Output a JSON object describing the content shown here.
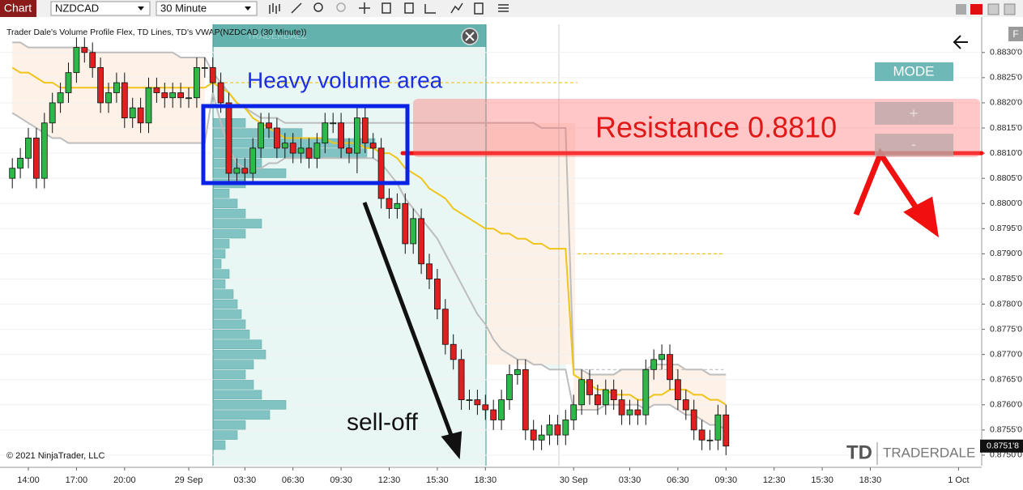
{
  "toolbar": {
    "tab": "Chart",
    "instrument": "NZDCAD",
    "interval": "30 Minute"
  },
  "chart_data": {
    "type": "candlestick",
    "title": "Trader Dale's Volume Profile Flex, TD Lines, TD's VWAP(NZDCAD (30 Minute))",
    "watermark": "TRADERDALE",
    "categories": [
      null,
      null,
      "14:00",
      null,
      null,
      null,
      null,
      null,
      "17:00",
      null,
      null,
      null,
      null,
      null,
      "20:00",
      null,
      null,
      null,
      null,
      null,
      null,
      null,
      "29 Sep",
      null,
      null,
      null,
      null,
      null,
      null,
      "03:30",
      null,
      null,
      null,
      null,
      null,
      "06:30",
      null,
      null,
      null,
      null,
      null,
      "09:30",
      null,
      null,
      null,
      null,
      null,
      "12:30",
      null,
      null,
      null,
      null,
      null,
      "15:30",
      null,
      null,
      null,
      null,
      null,
      "18:30",
      null,
      null,
      null,
      null,
      null,
      null,
      null,
      null,
      null,
      null,
      "30 Sep",
      null,
      null,
      null,
      null,
      null,
      null,
      "03:30",
      null,
      null,
      null,
      null,
      null,
      "06:30",
      null,
      null,
      null,
      null,
      null,
      "09:30",
      null,
      null,
      null,
      null,
      null,
      "12:30",
      null,
      null,
      null,
      null,
      null,
      "15:30",
      null,
      null,
      null,
      null,
      null,
      "18:30",
      null,
      null,
      null,
      null,
      null,
      null,
      null,
      null,
      null,
      null,
      "1 Oct",
      null
    ],
    "open": [
      0.8805,
      0.8807,
      0.8809,
      0.8813,
      0.8805,
      0.8816,
      0.882,
      0.8822,
      0.8826,
      0.8831,
      0.883,
      0.8827,
      0.882,
      0.8822,
      0.8824,
      0.8817,
      0.8819,
      0.8816,
      0.8823,
      0.8822,
      0.8821,
      0.8822,
      0.8821,
      0.8821,
      0.8827,
      0.8827,
      0.8824,
      0.882,
      0.8806,
      0.8807,
      0.8806,
      0.8811,
      0.8816,
      0.8815,
      0.8811,
      0.8812,
      0.881,
      0.8811,
      0.8809,
      0.8812,
      0.8816,
      0.8816,
      0.8811,
      0.881,
      0.8817,
      0.8812,
      0.8811,
      0.8801,
      0.8799,
      0.88,
      0.8792,
      0.8797,
      0.8788,
      0.8785,
      0.8779,
      0.8772,
      0.8769,
      0.8761,
      0.8761,
      0.876,
      0.8759,
      0.8757,
      0.8761,
      0.8766,
      0.8767,
      0.8755,
      0.8753,
      0.8754,
      0.8756,
      0.8754,
      0.8757,
      0.876,
      0.8765,
      0.8762,
      0.876,
      0.8763,
      0.8761,
      0.8758,
      0.8759,
      0.8758,
      0.8767,
      0.8769,
      0.877,
      0.8765,
      0.8761,
      0.8759,
      0.8755,
      0.8753,
      0.8753,
      0.8758,
      null,
      null,
      null,
      null,
      null,
      null,
      null,
      null,
      null,
      null,
      null,
      null,
      null,
      null,
      null,
      null,
      null,
      null,
      null,
      null,
      null,
      null,
      null,
      null,
      null,
      null,
      null,
      null,
      null,
      null
    ],
    "high": [
      0.8809,
      0.8811,
      0.8815,
      0.8815,
      0.8818,
      0.8822,
      0.8824,
      0.8828,
      0.8833,
      0.8833,
      0.8832,
      0.8829,
      0.8824,
      0.8826,
      0.8826,
      0.8821,
      0.8821,
      0.8825,
      0.8825,
      0.8824,
      0.8824,
      0.8824,
      0.8823,
      0.8829,
      0.8829,
      0.8829,
      0.8826,
      0.8822,
      0.8809,
      0.8809,
      0.8813,
      0.8818,
      0.8818,
      0.8817,
      0.8814,
      0.8814,
      0.8813,
      0.8813,
      0.8814,
      0.8818,
      0.8818,
      0.8818,
      0.8813,
      0.8819,
      0.8819,
      0.8814,
      0.8813,
      0.8803,
      0.8802,
      0.8802,
      0.8799,
      0.8799,
      0.879,
      0.8787,
      0.8781,
      0.8774,
      0.8771,
      0.8763,
      0.8763,
      0.8762,
      0.8761,
      0.8763,
      0.8768,
      0.8769,
      0.8769,
      0.8757,
      0.8756,
      0.8758,
      0.8758,
      0.8759,
      0.8762,
      0.8767,
      0.8767,
      0.8764,
      0.8765,
      0.8765,
      0.8763,
      0.8761,
      0.8761,
      0.8769,
      0.8771,
      0.8772,
      0.8772,
      0.8767,
      0.8763,
      0.8761,
      0.8757,
      0.8755,
      0.876,
      0.876,
      null,
      null,
      null,
      null,
      null,
      null,
      null,
      null,
      null,
      null,
      null,
      null,
      null,
      null,
      null,
      null,
      null,
      null,
      null,
      null,
      null,
      null,
      null,
      null,
      null,
      null,
      null,
      null,
      null,
      null
    ],
    "low": [
      0.8803,
      0.8805,
      0.8807,
      0.8803,
      0.8803,
      0.8814,
      0.8818,
      0.882,
      0.8824,
      0.8828,
      0.8825,
      0.8818,
      0.8818,
      0.882,
      0.8815,
      0.8815,
      0.8814,
      0.8814,
      0.882,
      0.8819,
      0.8819,
      0.8819,
      0.8819,
      0.8819,
      0.8825,
      0.8822,
      0.8818,
      0.8804,
      0.8804,
      0.8804,
      0.8804,
      0.8809,
      0.8813,
      0.8809,
      0.8809,
      0.8808,
      0.8808,
      0.8807,
      0.8807,
      0.881,
      0.8814,
      0.8809,
      0.8808,
      0.8806,
      0.881,
      0.8809,
      0.8799,
      0.8797,
      0.8797,
      0.879,
      0.879,
      0.8786,
      0.8783,
      0.8777,
      0.877,
      0.8767,
      0.8759,
      0.8759,
      0.8758,
      0.8757,
      0.8755,
      0.8755,
      0.8759,
      0.8764,
      0.8753,
      0.8751,
      0.8751,
      0.8752,
      0.8752,
      0.8752,
      0.8755,
      0.8758,
      0.876,
      0.8758,
      0.8758,
      0.8759,
      0.8756,
      0.8756,
      0.8756,
      0.8756,
      0.8765,
      0.8767,
      0.8763,
      0.8759,
      0.8757,
      0.8753,
      0.8751,
      0.8751,
      0.8751,
      0.875,
      null,
      null,
      null,
      null,
      null,
      null,
      null,
      null,
      null,
      null,
      null,
      null,
      null,
      null,
      null,
      null,
      null,
      null,
      null,
      null,
      null,
      null,
      null,
      null,
      null,
      null,
      null,
      null,
      null,
      null
    ],
    "close": [
      0.8807,
      0.8809,
      0.8813,
      0.8805,
      0.8816,
      0.882,
      0.8822,
      0.8826,
      0.8831,
      0.883,
      0.8827,
      0.882,
      0.8822,
      0.8824,
      0.8817,
      0.8819,
      0.8816,
      0.8823,
      0.8822,
      0.8821,
      0.8822,
      0.8821,
      0.8821,
      0.8827,
      0.8827,
      0.8824,
      0.882,
      0.8806,
      0.8807,
      0.8806,
      0.8811,
      0.8816,
      0.8815,
      0.8811,
      0.8812,
      0.881,
      0.8811,
      0.8809,
      0.8812,
      0.8816,
      0.8816,
      0.8811,
      0.881,
      0.8817,
      0.8812,
      0.8811,
      0.8801,
      0.8799,
      0.88,
      0.8792,
      0.8797,
      0.8788,
      0.8785,
      0.8779,
      0.8772,
      0.8769,
      0.8761,
      0.8761,
      0.876,
      0.8759,
      0.8757,
      0.8761,
      0.8766,
      0.8767,
      0.8755,
      0.8753,
      0.8754,
      0.8756,
      0.8754,
      0.8757,
      0.876,
      0.8765,
      0.8762,
      0.876,
      0.8763,
      0.8761,
      0.8758,
      0.8759,
      0.8758,
      0.8767,
      0.8769,
      0.877,
      0.8765,
      0.8761,
      0.8759,
      0.8755,
      0.8753,
      0.8753,
      0.8758,
      0.87518,
      null,
      null,
      null,
      null,
      null,
      null,
      null,
      null,
      null,
      null,
      null,
      null,
      null,
      null,
      null,
      null,
      null,
      null,
      null,
      null,
      null,
      null,
      null,
      null,
      null,
      null,
      null,
      null,
      null,
      null
    ],
    "up_color": "#2fb84a",
    "down_color": "#e02020",
    "lines": [
      {
        "color": "#bdbdbd",
        "values": [
          0.8832,
          0.8832,
          0.8831,
          0.8831,
          0.8831,
          0.8831,
          0.8831,
          0.8831,
          0.8831,
          0.8831,
          0.883,
          0.883,
          0.883,
          0.883,
          0.883,
          0.883,
          0.883,
          0.883,
          0.883,
          0.883,
          0.883,
          0.8829,
          0.8829,
          0.8829,
          0.8829,
          0.8826,
          0.8824,
          0.8822,
          0.882,
          0.8819,
          0.8818,
          0.8817,
          0.8817,
          0.8817,
          0.8816,
          0.8816,
          0.8816,
          0.8816,
          0.8816,
          0.8816,
          0.8816,
          0.8816,
          0.8816,
          0.8816,
          0.8816,
          0.8816,
          0.8816,
          0.8816,
          0.8816,
          0.8816,
          0.8816,
          0.8816,
          0.8816,
          0.8816,
          0.8816,
          0.8816,
          0.8816,
          0.8816,
          0.8816,
          0.8816,
          0.8816,
          0.8816,
          0.8816,
          0.8816,
          0.8816,
          0.8816,
          0.8815,
          0.8815,
          0.8815,
          0.8815,
          0.8767,
          0.8767,
          0.8766,
          0.8766,
          0.8766,
          0.8766,
          0.8767,
          0.8767,
          0.8767,
          0.8767,
          0.8768,
          0.8768,
          0.8768,
          0.8768,
          0.8767,
          0.8767,
          0.8767,
          0.8766,
          0.8766,
          0.8766,
          null,
          null,
          null,
          null,
          null,
          null,
          null,
          null,
          null,
          null,
          null,
          null,
          null,
          null,
          null,
          null,
          null,
          null,
          null,
          null,
          null,
          null,
          null,
          null,
          null,
          null,
          null,
          null,
          null,
          null
        ]
      },
      {
        "color": "#bdbdbd",
        "values": [
          0.8818,
          0.8817,
          0.8816,
          0.8815,
          0.8814,
          0.8813,
          0.8813,
          0.8812,
          0.8812,
          0.8812,
          0.8812,
          0.8812,
          0.8812,
          0.8812,
          0.8812,
          0.8812,
          0.8812,
          0.8812,
          0.8812,
          0.8812,
          0.8812,
          0.8812,
          0.8812,
          0.8812,
          0.8812,
          0.8822,
          0.8816,
          0.8811,
          0.8808,
          0.8807,
          0.8807,
          0.8807,
          0.8808,
          0.8808,
          0.8809,
          0.8809,
          0.8809,
          0.8809,
          0.8809,
          0.8809,
          0.8809,
          0.8809,
          0.8809,
          0.8809,
          0.8809,
          0.8809,
          0.8808,
          0.8806,
          0.8804,
          0.8801,
          0.8799,
          0.8797,
          0.8795,
          0.8793,
          0.879,
          0.8787,
          0.8784,
          0.8781,
          0.8778,
          0.8776,
          0.8773,
          0.8771,
          0.877,
          0.8769,
          0.8769,
          0.8768,
          0.8768,
          0.8767,
          0.8767,
          0.8767,
          0.8759,
          0.8759,
          0.8759,
          0.8759,
          0.876,
          0.876,
          0.876,
          0.876,
          0.876,
          0.8759,
          0.876,
          0.876,
          0.876,
          0.8759,
          0.8758,
          0.8758,
          0.8757,
          0.8756,
          0.8756,
          0.8755,
          null,
          null,
          null,
          null,
          null,
          null,
          null,
          null,
          null,
          null,
          null,
          null,
          null,
          null,
          null,
          null,
          null,
          null,
          null,
          null,
          null,
          null,
          null,
          null,
          null,
          null,
          null,
          null,
          null,
          null
        ]
      },
      {
        "color": "#f0c419",
        "values": [
          0.8827,
          0.8826,
          0.8826,
          0.8825,
          0.8824,
          0.8824,
          0.8823,
          0.8823,
          0.8823,
          0.8823,
          0.8823,
          0.8823,
          0.8823,
          0.8823,
          0.8823,
          0.8823,
          0.8823,
          0.8823,
          0.8823,
          0.8823,
          0.8823,
          0.8823,
          0.8823,
          0.8823,
          0.8823,
          0.8824,
          0.8823,
          0.8822,
          0.882,
          0.8819,
          0.8817,
          0.8816,
          0.8815,
          0.8814,
          0.8813,
          0.8813,
          0.8813,
          0.8813,
          0.8813,
          0.8813,
          0.8812,
          0.8812,
          0.8812,
          0.8812,
          0.8811,
          0.8811,
          0.881,
          0.881,
          0.8809,
          0.8807,
          0.8806,
          0.8805,
          0.8803,
          0.8802,
          0.8801,
          0.8799,
          0.8798,
          0.8797,
          0.8796,
          0.8795,
          0.8795,
          0.8794,
          0.8794,
          0.8793,
          0.8793,
          0.8792,
          0.8792,
          0.8791,
          0.8791,
          0.8791,
          0.8766,
          0.8765,
          0.8764,
          0.8763,
          0.8763,
          0.8762,
          0.8762,
          0.8762,
          0.8761,
          0.8761,
          0.8762,
          0.8762,
          0.8763,
          0.8763,
          0.8763,
          0.8762,
          0.8762,
          0.8761,
          0.8761,
          0.876,
          null,
          null,
          null,
          null,
          null,
          null,
          null,
          null,
          null,
          null,
          null,
          null,
          null,
          null,
          null,
          null,
          null,
          null,
          null,
          null,
          null,
          null,
          null,
          null,
          null,
          null,
          null,
          null,
          null,
          null
        ]
      }
    ],
    "levels": [
      {
        "value": 0.8824,
        "color": "#f0c419"
      },
      {
        "value": 0.879,
        "color": "#f0c419"
      },
      {
        "value": 0.8767,
        "color": "#bdbdbd"
      }
    ],
    "volume_profile": {
      "color": "#5fb3b3",
      "prices": [
        0.8816,
        0.8814,
        0.8812,
        0.881,
        0.8808,
        0.8806,
        0.8804,
        0.8802,
        0.88,
        0.8798,
        0.8796,
        0.8794,
        0.8792,
        0.879,
        0.8788,
        0.8786,
        0.8784,
        0.8782,
        0.878,
        0.8778,
        0.8776,
        0.8774,
        0.8772,
        0.877,
        0.8768,
        0.8766,
        0.8764,
        0.8762,
        0.876,
        0.8758,
        0.8756,
        0.8754,
        0.8752
      ],
      "volumes": [
        40,
        110,
        200,
        190,
        60,
        90,
        40,
        20,
        30,
        40,
        60,
        40,
        20,
        15,
        10,
        20,
        15,
        25,
        30,
        35,
        40,
        45,
        60,
        65,
        50,
        40,
        50,
        60,
        90,
        70,
        40,
        30,
        15
      ]
    },
    "ylim": [
      0.87479,
      0.88356
    ],
    "yticks": [
      {
        "value": 0.875,
        "label": "0.8750'0"
      },
      {
        "value": 0.8755,
        "label": "0.8755'0"
      },
      {
        "value": 0.876,
        "label": "0.8760'0"
      },
      {
        "value": 0.8765,
        "label": "0.8765'0"
      },
      {
        "value": 0.877,
        "label": "0.8770'0"
      },
      {
        "value": 0.8775,
        "label": "0.8775'0"
      },
      {
        "value": 0.878,
        "label": "0.8780'0"
      },
      {
        "value": 0.8785,
        "label": "0.8785'0"
      },
      {
        "value": 0.879,
        "label": "0.8790'0"
      },
      {
        "value": 0.8795,
        "label": "0.8795'0"
      },
      {
        "value": 0.88,
        "label": "0.8800'0"
      },
      {
        "value": 0.8805,
        "label": "0.8805'0"
      },
      {
        "value": 0.881,
        "label": "0.8810'0"
      },
      {
        "value": 0.8815,
        "label": "0.8815'0"
      },
      {
        "value": 0.882,
        "label": "0.8820'0"
      },
      {
        "value": 0.8825,
        "label": "0.8825'0"
      },
      {
        "value": 0.883,
        "label": "0.8830'0"
      }
    ],
    "last_price": {
      "value": 0.87518,
      "label": "0.8751'8"
    },
    "annotations": {
      "heavy_volume": "Heavy volume area",
      "resistance_label": "Resistance 0.8810",
      "resistance_value": 0.881,
      "sell_off": "sell-off"
    }
  },
  "controls": {
    "mode": "MODE",
    "plus": "+",
    "minus": "-",
    "panel": "F"
  },
  "copyright": "© 2021 NinjaTrader, LLC",
  "logo": {
    "mark": "TD",
    "name": "TRADERDALE"
  }
}
